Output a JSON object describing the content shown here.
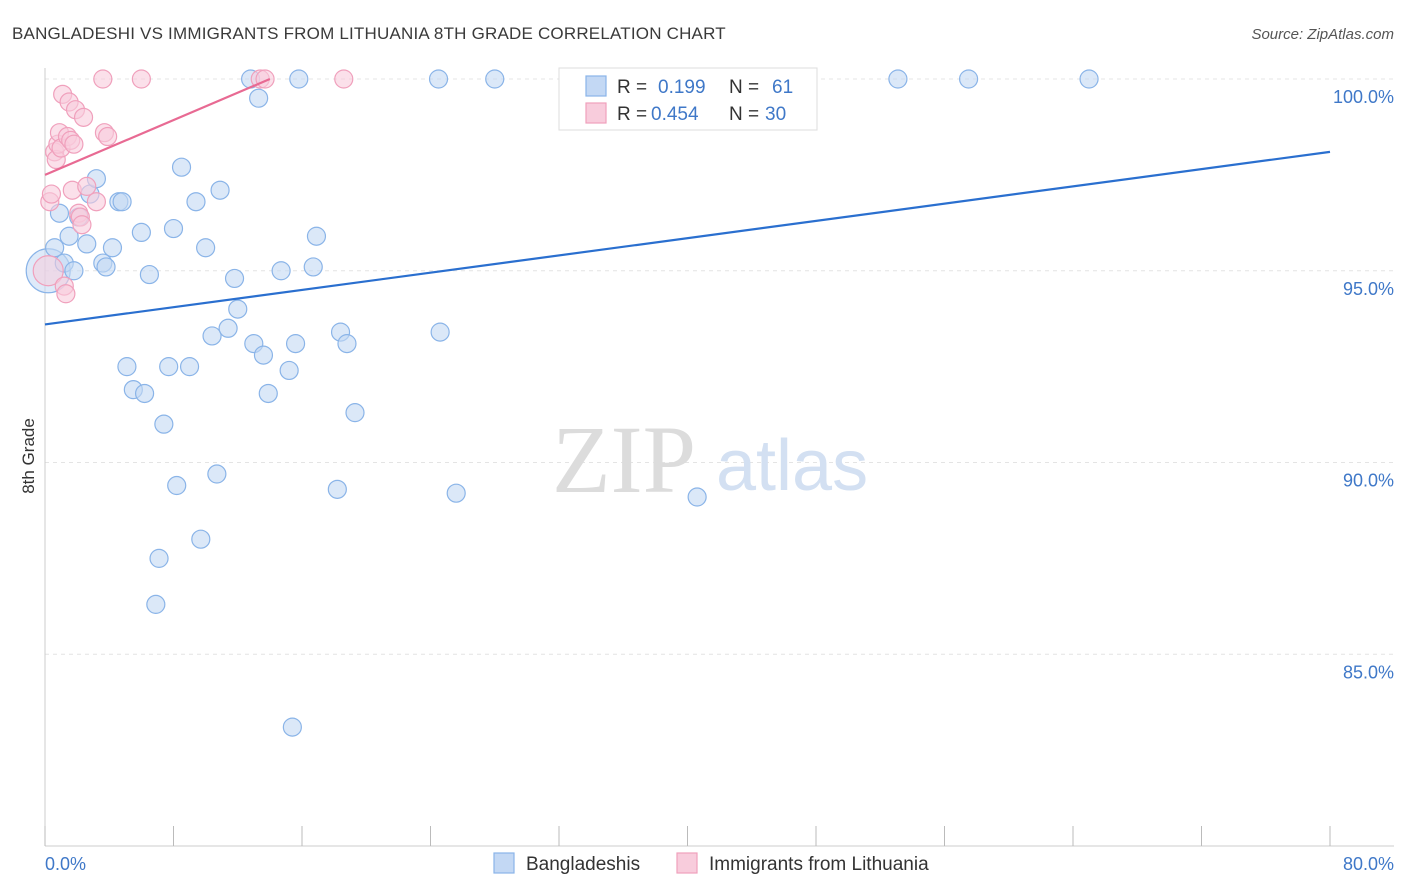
{
  "chart_data": {
    "type": "scatter",
    "title": "BANGLADESHI VS IMMIGRANTS FROM LITHUANIA 8TH GRADE CORRELATION CHART",
    "source": "Source: ZipAtlas.com",
    "xlabel": "",
    "ylabel": "8th Grade",
    "xlim": [
      0,
      80
    ],
    "ylim": [
      80.5,
      100.8
    ],
    "x_ticks": [
      0,
      8,
      16,
      24,
      32,
      40,
      48,
      56,
      64,
      72,
      80
    ],
    "x_tick_labels": {
      "min": "0.0%",
      "max": "80.0%"
    },
    "y_ticks": [
      85,
      90,
      95,
      100
    ],
    "y_tick_labels": [
      "85.0%",
      "90.0%",
      "95.0%",
      "100.0%"
    ],
    "grid": true,
    "watermark": {
      "zip": "ZIP",
      "atlas": "atlas"
    },
    "legend": {
      "rows": [
        {
          "r_label": "R =",
          "r_value": "0.199",
          "n_label": "N =",
          "n_value": "61"
        },
        {
          "r_label": "R =",
          "r_value": "0.454",
          "n_label": "N =",
          "n_value": "30"
        }
      ]
    },
    "series": [
      {
        "name": "Bangladeshis",
        "color": "#8ab4e8",
        "fill": "#c3d8f4",
        "line_color": "#2a6fcf",
        "trend": [
          [
            0,
            93.6
          ],
          [
            80,
            98.1
          ]
        ],
        "points": [
          [
            0.2,
            95.0,
            3
          ],
          [
            0.6,
            95.6,
            1
          ],
          [
            0.9,
            96.5,
            1
          ],
          [
            1.2,
            95.2,
            1
          ],
          [
            1.5,
            95.9,
            1
          ],
          [
            1.8,
            95.0,
            1
          ],
          [
            2.1,
            96.4,
            1
          ],
          [
            2.6,
            95.7,
            1
          ],
          [
            2.8,
            97.0,
            1
          ],
          [
            3.2,
            97.4,
            1
          ],
          [
            3.6,
            95.2,
            1
          ],
          [
            3.8,
            95.1,
            1
          ],
          [
            4.2,
            95.6,
            1
          ],
          [
            4.6,
            96.8,
            1
          ],
          [
            4.8,
            96.8,
            1
          ],
          [
            5.1,
            92.5,
            1
          ],
          [
            5.5,
            91.9,
            1
          ],
          [
            6.0,
            96.0,
            1
          ],
          [
            6.2,
            91.8,
            1
          ],
          [
            6.5,
            94.9,
            1
          ],
          [
            6.9,
            86.3,
            1
          ],
          [
            7.1,
            87.5,
            1
          ],
          [
            7.4,
            91.0,
            1
          ],
          [
            7.7,
            92.5,
            1
          ],
          [
            8.0,
            96.1,
            1
          ],
          [
            8.2,
            89.4,
            1
          ],
          [
            8.5,
            97.7,
            1
          ],
          [
            9.0,
            92.5,
            1
          ],
          [
            9.4,
            96.8,
            1
          ],
          [
            9.7,
            88.0,
            1
          ],
          [
            10.0,
            95.6,
            1
          ],
          [
            10.4,
            93.3,
            1
          ],
          [
            10.7,
            89.7,
            1
          ],
          [
            10.9,
            97.1,
            1
          ],
          [
            11.4,
            93.5,
            1
          ],
          [
            11.8,
            94.8,
            1
          ],
          [
            12.0,
            94.0,
            1
          ],
          [
            12.8,
            100.0,
            1
          ],
          [
            13.0,
            93.1,
            1
          ],
          [
            13.3,
            99.5,
            1
          ],
          [
            13.6,
            92.8,
            1
          ],
          [
            13.9,
            91.8,
            1
          ],
          [
            14.7,
            95.0,
            1
          ],
          [
            15.2,
            92.4,
            1
          ],
          [
            15.4,
            83.1,
            1
          ],
          [
            15.6,
            93.1,
            1
          ],
          [
            15.8,
            100.0,
            1
          ],
          [
            16.7,
            95.1,
            1
          ],
          [
            16.9,
            95.9,
            1
          ],
          [
            18.2,
            89.3,
            1
          ],
          [
            18.4,
            93.4,
            1
          ],
          [
            18.8,
            93.1,
            1
          ],
          [
            19.3,
            91.3,
            1
          ],
          [
            24.5,
            100.0,
            1
          ],
          [
            24.6,
            93.4,
            1
          ],
          [
            25.6,
            89.2,
            1
          ],
          [
            28.0,
            100.0,
            1
          ],
          [
            40.6,
            89.1,
            1
          ],
          [
            53.1,
            100.0,
            1
          ],
          [
            57.5,
            100.0,
            1
          ],
          [
            65.0,
            100.0,
            1
          ]
        ]
      },
      {
        "name": "Immigrants from Lithuania",
        "color": "#f0a0bc",
        "fill": "#f8ccdc",
        "line_color": "#e86a93",
        "trend": [
          [
            0,
            97.5
          ],
          [
            14,
            100.0
          ]
        ],
        "points": [
          [
            0.2,
            95.0,
            2
          ],
          [
            0.3,
            96.8,
            1
          ],
          [
            0.4,
            97.0,
            1
          ],
          [
            0.6,
            98.1,
            1
          ],
          [
            0.7,
            97.9,
            1
          ],
          [
            0.8,
            98.3,
            1
          ],
          [
            0.9,
            98.6,
            1
          ],
          [
            1.0,
            98.2,
            1
          ],
          [
            1.1,
            99.6,
            1
          ],
          [
            1.2,
            94.6,
            1
          ],
          [
            1.3,
            94.4,
            1
          ],
          [
            1.4,
            98.5,
            1
          ],
          [
            1.5,
            99.4,
            1
          ],
          [
            1.6,
            98.4,
            1
          ],
          [
            1.7,
            97.1,
            1
          ],
          [
            1.8,
            98.3,
            1
          ],
          [
            1.9,
            99.2,
            1
          ],
          [
            2.1,
            96.5,
            1
          ],
          [
            2.2,
            96.4,
            1
          ],
          [
            2.3,
            96.2,
            1
          ],
          [
            2.4,
            99.0,
            1
          ],
          [
            2.6,
            97.2,
            1
          ],
          [
            3.2,
            96.8,
            1
          ],
          [
            3.6,
            100.0,
            1
          ],
          [
            3.7,
            98.6,
            1
          ],
          [
            3.9,
            98.5,
            1
          ],
          [
            6.0,
            100.0,
            1
          ],
          [
            13.4,
            100.0,
            1
          ],
          [
            13.7,
            100.0,
            1
          ],
          [
            18.6,
            100.0,
            1
          ]
        ]
      }
    ]
  }
}
